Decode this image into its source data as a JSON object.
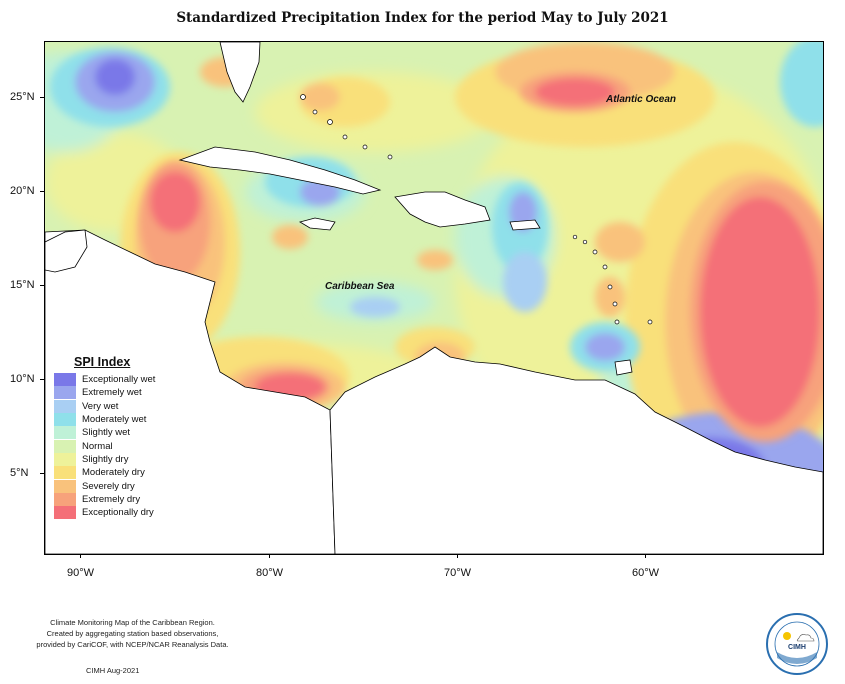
{
  "title": "Standardized Precipitation Index for the period May to July 2021",
  "lat_labels": [
    "25°N",
    "20°N",
    "15°N",
    "10°N",
    "5°N"
  ],
  "lon_labels": [
    "90°W",
    "80°W",
    "70°W",
    "60°W"
  ],
  "ocean_labels": {
    "atlantic": "Atlantic Ocean",
    "caribbean": "Caribbean Sea"
  },
  "legend": {
    "title": "SPI Index",
    "items": [
      {
        "label": "Exceptionally wet",
        "color": "#7a78e8"
      },
      {
        "label": "Extremely wet",
        "color": "#9aa6ee"
      },
      {
        "label": "Very wet",
        "color": "#a9cff3"
      },
      {
        "label": "Moderately wet",
        "color": "#8fe0ea"
      },
      {
        "label": "Slightly wet",
        "color": "#bff1d7"
      },
      {
        "label": "Normal",
        "color": "#d8f2b2"
      },
      {
        "label": "Slightly dry",
        "color": "#eef29a"
      },
      {
        "label": "Moderately dry",
        "color": "#f9e07a"
      },
      {
        "label": "Severely dry",
        "color": "#f9c27c"
      },
      {
        "label": "Extremely dry",
        "color": "#f7a27b"
      },
      {
        "label": "Exceptionally dry",
        "color": "#f46f78"
      }
    ]
  },
  "footnote_lines": [
    "Climate Monitoring Map of the Caribbean Region.",
    "Created by aggregating station based observations,",
    "provided by CariCOF, with NCEP/NCAR Reanalysis Data."
  ],
  "credit": "CIMH Aug-2021",
  "logo": {
    "text": "CIMH",
    "ring_text": "Caribbean Institute for Meteorology and Hydrology"
  }
}
